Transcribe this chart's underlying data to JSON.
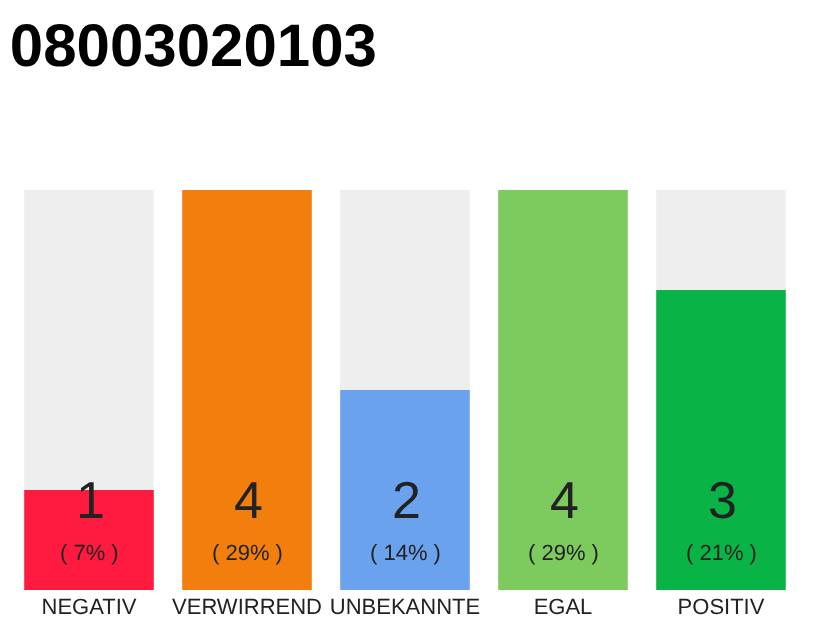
{
  "chart_data": {
    "type": "bar",
    "title": "08003020103",
    "categories": [
      "NEGATIV",
      "VERWIRREND",
      "UNBEKANNTE",
      "EGAL",
      "POSITIV"
    ],
    "values": [
      1,
      4,
      2,
      4,
      3
    ],
    "colors": [
      "#ff1a40",
      "#f27f0d",
      "#6aa2ee",
      "#7dca5e",
      "#0ab345"
    ],
    "annotations": [
      "( 7% )",
      "( 29% )",
      "( 14% )",
      "( 29% )",
      "( 21% )"
    ],
    "data_labels": true,
    "tick_labels": "x",
    "grid": false,
    "legend": false
  }
}
